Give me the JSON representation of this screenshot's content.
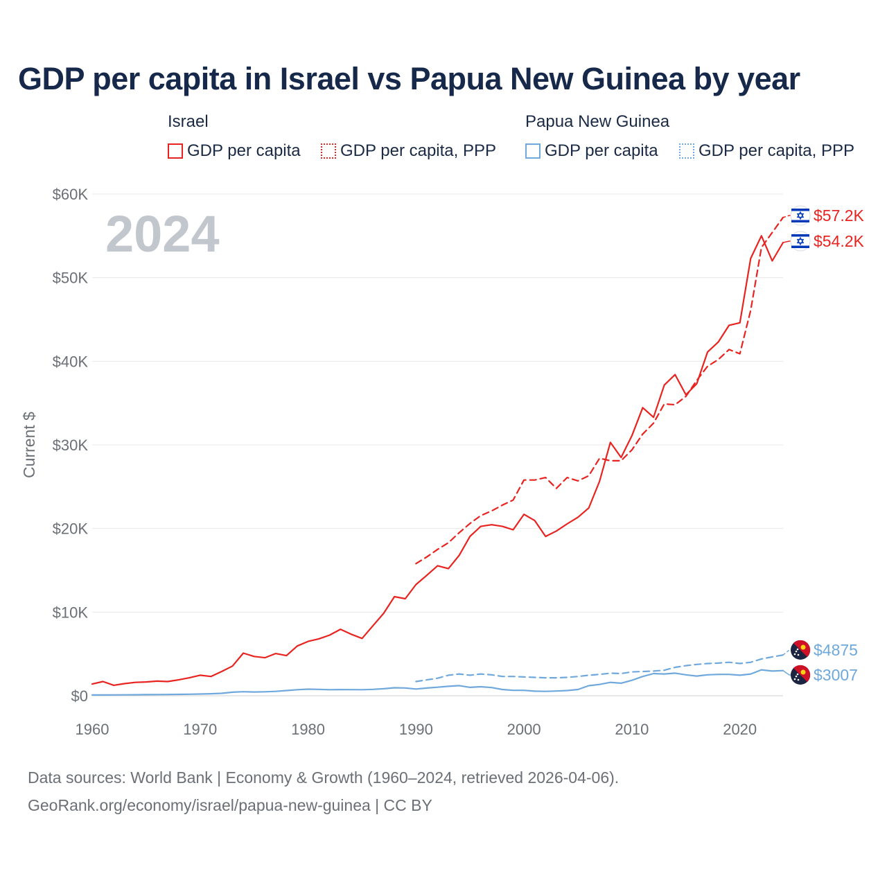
{
  "title": "GDP per capita in Israel vs Papua New Guinea by year",
  "legend": {
    "israel": {
      "title": "Israel",
      "items": [
        {
          "label": "GDP per capita",
          "style": "solid",
          "color": "#e8231f"
        },
        {
          "label": "GDP per capita, PPP",
          "style": "dotted",
          "color": "#e8231f"
        }
      ]
    },
    "png": {
      "title": "Papua New Guinea",
      "items": [
        {
          "label": "GDP per capita",
          "style": "solid",
          "color": "#6fa8dc"
        },
        {
          "label": "GDP per capita, PPP",
          "style": "dotted",
          "color": "#6fa8dc"
        }
      ]
    }
  },
  "footer": {
    "line1": "Data sources: World Bank | Economy & Growth (1960–2024, retrieved 2026-04-06).",
    "line2": "GeoRank.org/economy/israel/papua-new-guinea | CC BY"
  },
  "chart_data": {
    "type": "line",
    "title": "GDP per capita in Israel vs Papua New Guinea by year",
    "xlabel": "",
    "ylabel": "Current $",
    "xlim": [
      1960,
      2024
    ],
    "ylim": [
      0,
      60000
    ],
    "grid": true,
    "watermark": "2024",
    "x_ticks": [
      1960,
      1970,
      1980,
      1990,
      2000,
      2010,
      2020
    ],
    "x_tick_labels": [
      "1960",
      "1970",
      "1980",
      "1990",
      "2000",
      "2010",
      "2020"
    ],
    "y_ticks": [
      0,
      10000,
      20000,
      30000,
      40000,
      50000,
      60000
    ],
    "y_tick_labels": [
      "$0",
      "$10K",
      "$20K",
      "$30K",
      "$40K",
      "$50K",
      "$60K"
    ],
    "series": [
      {
        "name": "Israel GDP per capita",
        "country": "Israel",
        "color": "#e8231f",
        "dash": "solid",
        "end_label": "$54.2K",
        "flag": "israel-flag-icon",
        "x": [
          1960,
          1961,
          1962,
          1963,
          1964,
          1965,
          1966,
          1967,
          1968,
          1969,
          1970,
          1971,
          1972,
          1973,
          1974,
          1975,
          1976,
          1977,
          1978,
          1979,
          1980,
          1981,
          1982,
          1983,
          1984,
          1985,
          1986,
          1987,
          1988,
          1989,
          1990,
          1991,
          1992,
          1993,
          1994,
          1995,
          1996,
          1997,
          1998,
          1999,
          2000,
          2001,
          2002,
          2003,
          2004,
          2005,
          2006,
          2007,
          2008,
          2009,
          2010,
          2011,
          2012,
          2013,
          2014,
          2015,
          2016,
          2017,
          2018,
          2019,
          2020,
          2021,
          2022,
          2023,
          2024
        ],
        "values": [
          1400,
          1700,
          1250,
          1450,
          1600,
          1650,
          1750,
          1700,
          1900,
          2150,
          2450,
          2300,
          2900,
          3550,
          5100,
          4700,
          4550,
          5050,
          4800,
          5950,
          6500,
          6800,
          7250,
          7950,
          7350,
          6850,
          8350,
          9850,
          11850,
          11600,
          13300,
          14400,
          15550,
          15200,
          16800,
          19050,
          20250,
          20450,
          20250,
          19850,
          21700,
          20950,
          19050,
          19700,
          20550,
          21350,
          22450,
          25650,
          30300,
          28500,
          31100,
          34450,
          33300,
          37150,
          38400,
          36000,
          37300,
          41100,
          42300,
          44300,
          44600,
          52300,
          55000,
          52000,
          54200
        ]
      },
      {
        "name": "Israel GDP per capita, PPP",
        "country": "Israel",
        "color": "#e8231f",
        "dash": "dashed",
        "end_label": "$57.2K",
        "flag": "israel-flag-icon",
        "x": [
          1990,
          1991,
          1992,
          1993,
          1994,
          1995,
          1996,
          1997,
          1998,
          1999,
          2000,
          2001,
          2002,
          2003,
          2004,
          2005,
          2006,
          2007,
          2008,
          2009,
          2010,
          2011,
          2012,
          2013,
          2014,
          2015,
          2016,
          2017,
          2018,
          2019,
          2020,
          2021,
          2022,
          2023,
          2024
        ],
        "values": [
          15800,
          16600,
          17500,
          18300,
          19500,
          20600,
          21550,
          22100,
          22800,
          23400,
          25800,
          25800,
          26100,
          24800,
          26100,
          25700,
          26300,
          28400,
          28100,
          28100,
          29400,
          31300,
          32600,
          34900,
          34800,
          35800,
          37700,
          39400,
          40200,
          41400,
          40900,
          46100,
          53600,
          55400,
          57200
        ]
      },
      {
        "name": "Papua New Guinea GDP per capita",
        "country": "Papua New Guinea",
        "color": "#6fa8dc",
        "dash": "solid",
        "end_label": "$3007",
        "flag": "papua-new-guinea-flag-icon",
        "x": [
          1960,
          1961,
          1962,
          1963,
          1964,
          1965,
          1966,
          1967,
          1968,
          1969,
          1970,
          1971,
          1972,
          1973,
          1974,
          1975,
          1976,
          1977,
          1978,
          1979,
          1980,
          1981,
          1982,
          1983,
          1984,
          1985,
          1986,
          1987,
          1988,
          1989,
          1990,
          1991,
          1992,
          1993,
          1994,
          1995,
          1996,
          1997,
          1998,
          1999,
          2000,
          2001,
          2002,
          2003,
          2004,
          2005,
          2006,
          2007,
          2008,
          2009,
          2010,
          2011,
          2012,
          2013,
          2014,
          2015,
          2016,
          2017,
          2018,
          2019,
          2020,
          2021,
          2022,
          2023,
          2024
        ],
        "values": [
          90,
          95,
          100,
          110,
          120,
          130,
          140,
          150,
          165,
          185,
          210,
          240,
          290,
          420,
          480,
          450,
          470,
          520,
          620,
          720,
          790,
          760,
          720,
          740,
          730,
          720,
          760,
          840,
          950,
          930,
          800,
          920,
          1020,
          1130,
          1210,
          1000,
          1080,
          980,
          750,
          650,
          650,
          550,
          520,
          560,
          620,
          750,
          1200,
          1350,
          1600,
          1500,
          1850,
          2300,
          2650,
          2600,
          2700,
          2500,
          2350,
          2500,
          2550,
          2550,
          2450,
          2600,
          3100,
          2950,
          3007
        ]
      },
      {
        "name": "Papua New Guinea GDP per capita, PPP",
        "country": "Papua New Guinea",
        "color": "#6fa8dc",
        "dash": "dashed",
        "end_label": "$4875",
        "flag": "papua-new-guinea-flag-icon",
        "x": [
          1990,
          1991,
          1992,
          1993,
          1994,
          1995,
          1996,
          1997,
          1998,
          1999,
          2000,
          2001,
          2002,
          2003,
          2004,
          2005,
          2006,
          2007,
          2008,
          2009,
          2010,
          2011,
          2012,
          2013,
          2014,
          2015,
          2016,
          2017,
          2018,
          2019,
          2020,
          2021,
          2022,
          2023,
          2024
        ],
        "values": [
          1700,
          1900,
          2100,
          2450,
          2600,
          2450,
          2600,
          2500,
          2300,
          2300,
          2250,
          2200,
          2150,
          2150,
          2200,
          2300,
          2450,
          2550,
          2700,
          2650,
          2850,
          2900,
          2950,
          3050,
          3400,
          3600,
          3750,
          3850,
          3900,
          4000,
          3850,
          4000,
          4400,
          4650,
          4875
        ]
      }
    ]
  }
}
